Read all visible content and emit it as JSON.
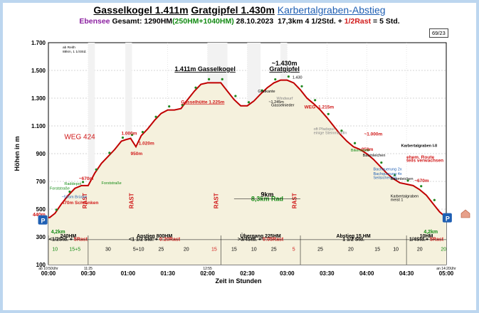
{
  "title": {
    "part1": "Gasselkogel 1.411m",
    "part2": "Gratgipfel 1.430m",
    "part3": "Karbertalgraben-Abstieg"
  },
  "subtitle": {
    "place": "Ebensee",
    "gesamt": "Gesamt: 1290HM",
    "hm_detail": "(250HM+1040HM)",
    "date": "28.10.2023",
    "dist_time": "17,3km  4 1/2Std. +",
    "rast": "1/2Rast",
    "total": "= 5 Std."
  },
  "page_tag": "69/23",
  "colors": {
    "profile": "#c00000",
    "marker": "#228822",
    "annotation_red": "#d01818",
    "annotation_blue": "#1f5fb3",
    "grid": "#aaaaaa"
  },
  "chart_data": {
    "type": "line",
    "ylabel": "Höhen in m",
    "xlabel": "Zeit in Stunden",
    "ylim": [
      100,
      1700
    ],
    "xlim": [
      0,
      300
    ],
    "yticks": [
      100,
      300,
      500,
      700,
      900,
      1100,
      1300,
      1500,
      1700
    ],
    "xticks": [
      {
        "t": 0,
        "label": "00:00"
      },
      {
        "t": 30,
        "label": "00:30"
      },
      {
        "t": 60,
        "label": "01:00"
      },
      {
        "t": 90,
        "label": "01:30"
      },
      {
        "t": 120,
        "label": "02:00"
      },
      {
        "t": 150,
        "label": "02:30"
      },
      {
        "t": 180,
        "label": "03:00"
      },
      {
        "t": 210,
        "label": "03:30"
      },
      {
        "t": 240,
        "label": "04:00"
      },
      {
        "t": 270,
        "label": "04:30"
      },
      {
        "t": 300,
        "label": "05:00"
      }
    ],
    "small_xlabels": [
      {
        "t": 0,
        "label": "ab 10:50Uhr"
      },
      {
        "t": 30,
        "label": "11:25"
      },
      {
        "t": 120,
        "label": "12:55"
      },
      {
        "t": 300,
        "label": "an 14:20Uhr"
      }
    ],
    "series": [
      {
        "values": [
          [
            0,
            440
          ],
          [
            1,
            440
          ],
          [
            5,
            470
          ],
          [
            10,
            540
          ],
          [
            15,
            600
          ],
          [
            20,
            650
          ],
          [
            25,
            670
          ],
          [
            30,
            670
          ],
          [
            35,
            760
          ],
          [
            40,
            830
          ],
          [
            45,
            880
          ],
          [
            50,
            930
          ],
          [
            55,
            990
          ],
          [
            58,
            1000
          ],
          [
            62,
            1010
          ],
          [
            66,
            950
          ],
          [
            70,
            1030
          ],
          [
            75,
            1080
          ],
          [
            80,
            1140
          ],
          [
            85,
            1190
          ],
          [
            90,
            1215
          ],
          [
            95,
            1215
          ],
          [
            100,
            1225
          ],
          [
            105,
            1290
          ],
          [
            110,
            1350
          ],
          [
            115,
            1400
          ],
          [
            120,
            1411
          ],
          [
            125,
            1411
          ],
          [
            130,
            1411
          ],
          [
            135,
            1350
          ],
          [
            140,
            1290
          ],
          [
            145,
            1245
          ],
          [
            150,
            1245
          ],
          [
            155,
            1280
          ],
          [
            160,
            1330
          ],
          [
            165,
            1375
          ],
          [
            170,
            1410
          ],
          [
            175,
            1430
          ],
          [
            180,
            1430
          ],
          [
            185,
            1410
          ],
          [
            190,
            1360
          ],
          [
            195,
            1300
          ],
          [
            200,
            1260
          ],
          [
            205,
            1215
          ],
          [
            210,
            1160
          ],
          [
            215,
            1100
          ],
          [
            220,
            1040
          ],
          [
            225,
            990
          ],
          [
            230,
            950
          ],
          [
            235,
            930
          ],
          [
            240,
            900
          ],
          [
            245,
            860
          ],
          [
            250,
            810
          ],
          [
            255,
            760
          ],
          [
            260,
            720
          ],
          [
            265,
            690
          ],
          [
            270,
            680
          ],
          [
            275,
            670
          ],
          [
            280,
            640
          ],
          [
            285,
            600
          ],
          [
            290,
            540
          ],
          [
            295,
            480
          ],
          [
            300,
            440
          ]
        ]
      }
    ],
    "rast_segments": [
      [
        30,
        35
      ],
      [
        58,
        63
      ],
      [
        120,
        135
      ],
      [
        150,
        160
      ],
      [
        175,
        180
      ]
    ],
    "peaks": [
      {
        "t": 122,
        "label": "1.411m Gasselkogel"
      },
      {
        "t": 178,
        "label": "~1.430m"
      },
      {
        "t": 178,
        "label": "Gratgipfel"
      }
    ],
    "red_annotations": [
      {
        "t": 12,
        "elev": 1005,
        "label": "WEG 424"
      },
      {
        "t": 100,
        "elev": 1262,
        "label": "Gasselhütte 1.225m"
      },
      {
        "t": 55,
        "elev": 1035,
        "label": "1.000m"
      },
      {
        "t": 62,
        "elev": 890,
        "label": "950m"
      },
      {
        "t": 68,
        "elev": 965,
        "label": "1.020m"
      },
      {
        "t": 23,
        "elev": 710,
        "label": "~670m"
      },
      {
        "t": 193,
        "elev": 1225,
        "label": "WEG -1.215m"
      },
      {
        "t": 238,
        "elev": 1030,
        "label": "~1.000m"
      },
      {
        "t": 236,
        "elev": 920,
        "label": "950m"
      },
      {
        "t": 276,
        "elev": 695,
        "label": "~670m"
      },
      {
        "t": 270,
        "elev": 865,
        "label": "ehem. Route"
      },
      {
        "t": 270,
        "elev": 840,
        "label": "teils verwachsen"
      },
      {
        "t": 10,
        "elev": 535,
        "label": "470m Schranken"
      }
    ],
    "green_annotations": [
      {
        "t": 1,
        "elev": 640,
        "label": "Forststraße"
      },
      {
        "t": 12,
        "elev": 675,
        "label": "Raddepot"
      },
      {
        "t": 40,
        "elev": 680,
        "label": "Forststraße"
      },
      {
        "t": 228,
        "elev": 915,
        "label": "Bikeroute"
      }
    ],
    "blue_annotations": [
      {
        "t": 10,
        "elev": 580,
        "label": "~535m Brücke"
      },
      {
        "t": 245,
        "elev": 780,
        "label": "Bachquerung 2x"
      },
      {
        "t": 245,
        "elev": 745,
        "label": "Bachquerung 4x"
      },
      {
        "t": 245,
        "elev": 718,
        "label": "Seilsicherung"
      }
    ],
    "black_annotations": [
      {
        "t": 158,
        "elev": 1340,
        "label": "Gratkante"
      },
      {
        "t": 168,
        "elev": 1240,
        "label": "Gasselnieder"
      },
      {
        "t": 166,
        "elev": 1265,
        "label": "~1.245m"
      },
      {
        "t": 184,
        "elev": 1440,
        "label": "1.430"
      },
      {
        "t": 172,
        "elev": 1290,
        "label": "Windwurf"
      },
      {
        "t": 200,
        "elev": 1070,
        "label": "oft Pfadspur"
      },
      {
        "t": 200,
        "elev": 1040,
        "label": "einige Steinmandln"
      },
      {
        "t": 237,
        "elev": 880,
        "label": "Baumleichen"
      },
      {
        "t": 258,
        "elev": 710,
        "label": "Baumleichen"
      },
      {
        "t": 258,
        "elev": 585,
        "label": "Karbertalgraben"
      },
      {
        "t": 258,
        "elev": 560,
        "label": "meist 1"
      },
      {
        "t": 266,
        "elev": 950,
        "label": "Karbertalgraben I-II"
      }
    ],
    "km_markers": [
      {
        "t": 165,
        "elev": 590,
        "label": "9km"
      },
      {
        "t": 165,
        "elev": 560,
        "label": "8,3km Rad"
      }
    ],
    "side_markers": [
      {
        "t": 0,
        "elev": 448,
        "label": "440m"
      },
      {
        "t": 2,
        "elev": 326,
        "label": "4,2km"
      },
      {
        "t": 283,
        "elev": 326,
        "label": "4,2km"
      }
    ],
    "corner_note": [
      "ab Reith",
      "88km, 1 1/4Std."
    ],
    "rast_labels": [
      {
        "t": 29,
        "label": "RAST"
      },
      {
        "t": 64,
        "label": "RAST"
      },
      {
        "t": 128,
        "label": "RAST"
      },
      {
        "t": 187,
        "label": "RAST"
      }
    ],
    "segments": [
      {
        "t0": 0,
        "t1": 30,
        "hm": "240HM",
        "time": "<1/2Std. +",
        "rast": "5Rast"
      },
      {
        "t0": 30,
        "t1": 130,
        "hm": "Anstieg 800HM",
        "time": "<1 1/2 Std. +",
        "rast": "0:20Rast"
      },
      {
        "t0": 130,
        "t1": 190,
        "hm": "Übergang 225HM",
        "time": ">3/4Std. +",
        "rast": "0:05Rast"
      },
      {
        "t0": 190,
        "t1": 270,
        "hm": "Abstieg 15 HM",
        "time": "1 1/2 Std.",
        "rast": ""
      },
      {
        "t0": 270,
        "t1": 300,
        "hm": "10HM",
        "time": "1/4Std.+",
        "rast": "5Rast"
      }
    ],
    "minute_labels": [
      {
        "t": 5,
        "label": "10",
        "color": "#138a13"
      },
      {
        "t": 20,
        "label": "15+5",
        "color": "#138a13"
      },
      {
        "t": 45,
        "label": "30",
        "color": "#000000"
      },
      {
        "t": 68,
        "label": "5+10",
        "color": "#000000"
      },
      {
        "t": 85,
        "label": "25",
        "color": "#000000"
      },
      {
        "t": 104,
        "label": "20",
        "color": "#000000"
      },
      {
        "t": 125,
        "label": "15",
        "color": "#d01818"
      },
      {
        "t": 140,
        "label": "15",
        "color": "#000000"
      },
      {
        "t": 155,
        "label": "10",
        "color": "#000000"
      },
      {
        "t": 170,
        "label": "25",
        "color": "#000000"
      },
      {
        "t": 185,
        "label": "5",
        "color": "#d01818"
      },
      {
        "t": 205,
        "label": "25",
        "color": "#000000"
      },
      {
        "t": 228,
        "label": "20",
        "color": "#000000"
      },
      {
        "t": 248,
        "label": "15",
        "color": "#000000"
      },
      {
        "t": 262,
        "label": "10",
        "color": "#000000"
      },
      {
        "t": 280,
        "label": "20",
        "color": "#000000"
      },
      {
        "t": 298,
        "label": "20",
        "color": "#138a13"
      }
    ],
    "parking": [
      {
        "t": -4,
        "elev": 420,
        "label": "P"
      },
      {
        "t": 301,
        "elev": 435,
        "label": "P"
      }
    ]
  }
}
